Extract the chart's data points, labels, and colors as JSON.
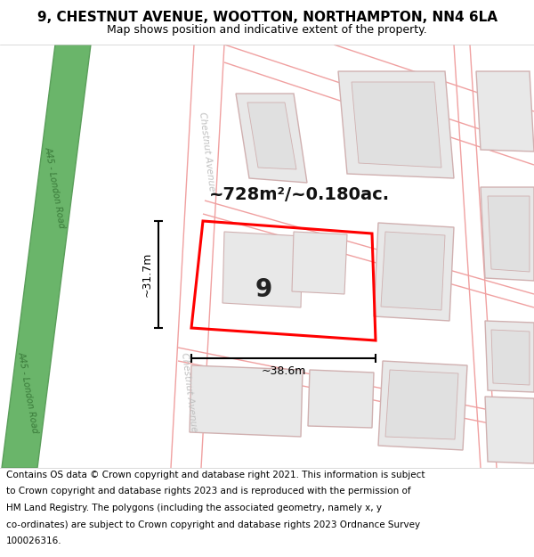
{
  "title": "9, CHESTNUT AVENUE, WOOTTON, NORTHAMPTON, NN4 6LA",
  "subtitle": "Map shows position and indicative extent of the property.",
  "area_text": "~728m²/~0.180ac.",
  "width_label": "~38.6m",
  "height_label": "~31.7m",
  "house_number": "9",
  "footer_lines": [
    "Contains OS data © Crown copyright and database right 2021. This information is subject",
    "to Crown copyright and database rights 2023 and is reproduced with the permission of",
    "HM Land Registry. The polygons (including the associated geometry, namely x, y",
    "co-ordinates) are subject to Crown copyright and database rights 2023 Ordnance Survey",
    "100026316."
  ],
  "bg_color": "#ffffff",
  "property_outline_color": "#ff0000",
  "road_pink": "#f0a0a0",
  "road_text_color": "#c0c0c0",
  "green_fill": "#6ab56a",
  "green_edge": "#5a9e5a",
  "green_text": "#3a7a3a",
  "building_fill": "#e8e8e8",
  "building_edge": "#d0b0b0",
  "title_fontsize": 11,
  "subtitle_fontsize": 9,
  "footer_fontsize": 7.5,
  "area_fontsize": 14,
  "dim_fontsize": 9,
  "houseno_fontsize": 20
}
